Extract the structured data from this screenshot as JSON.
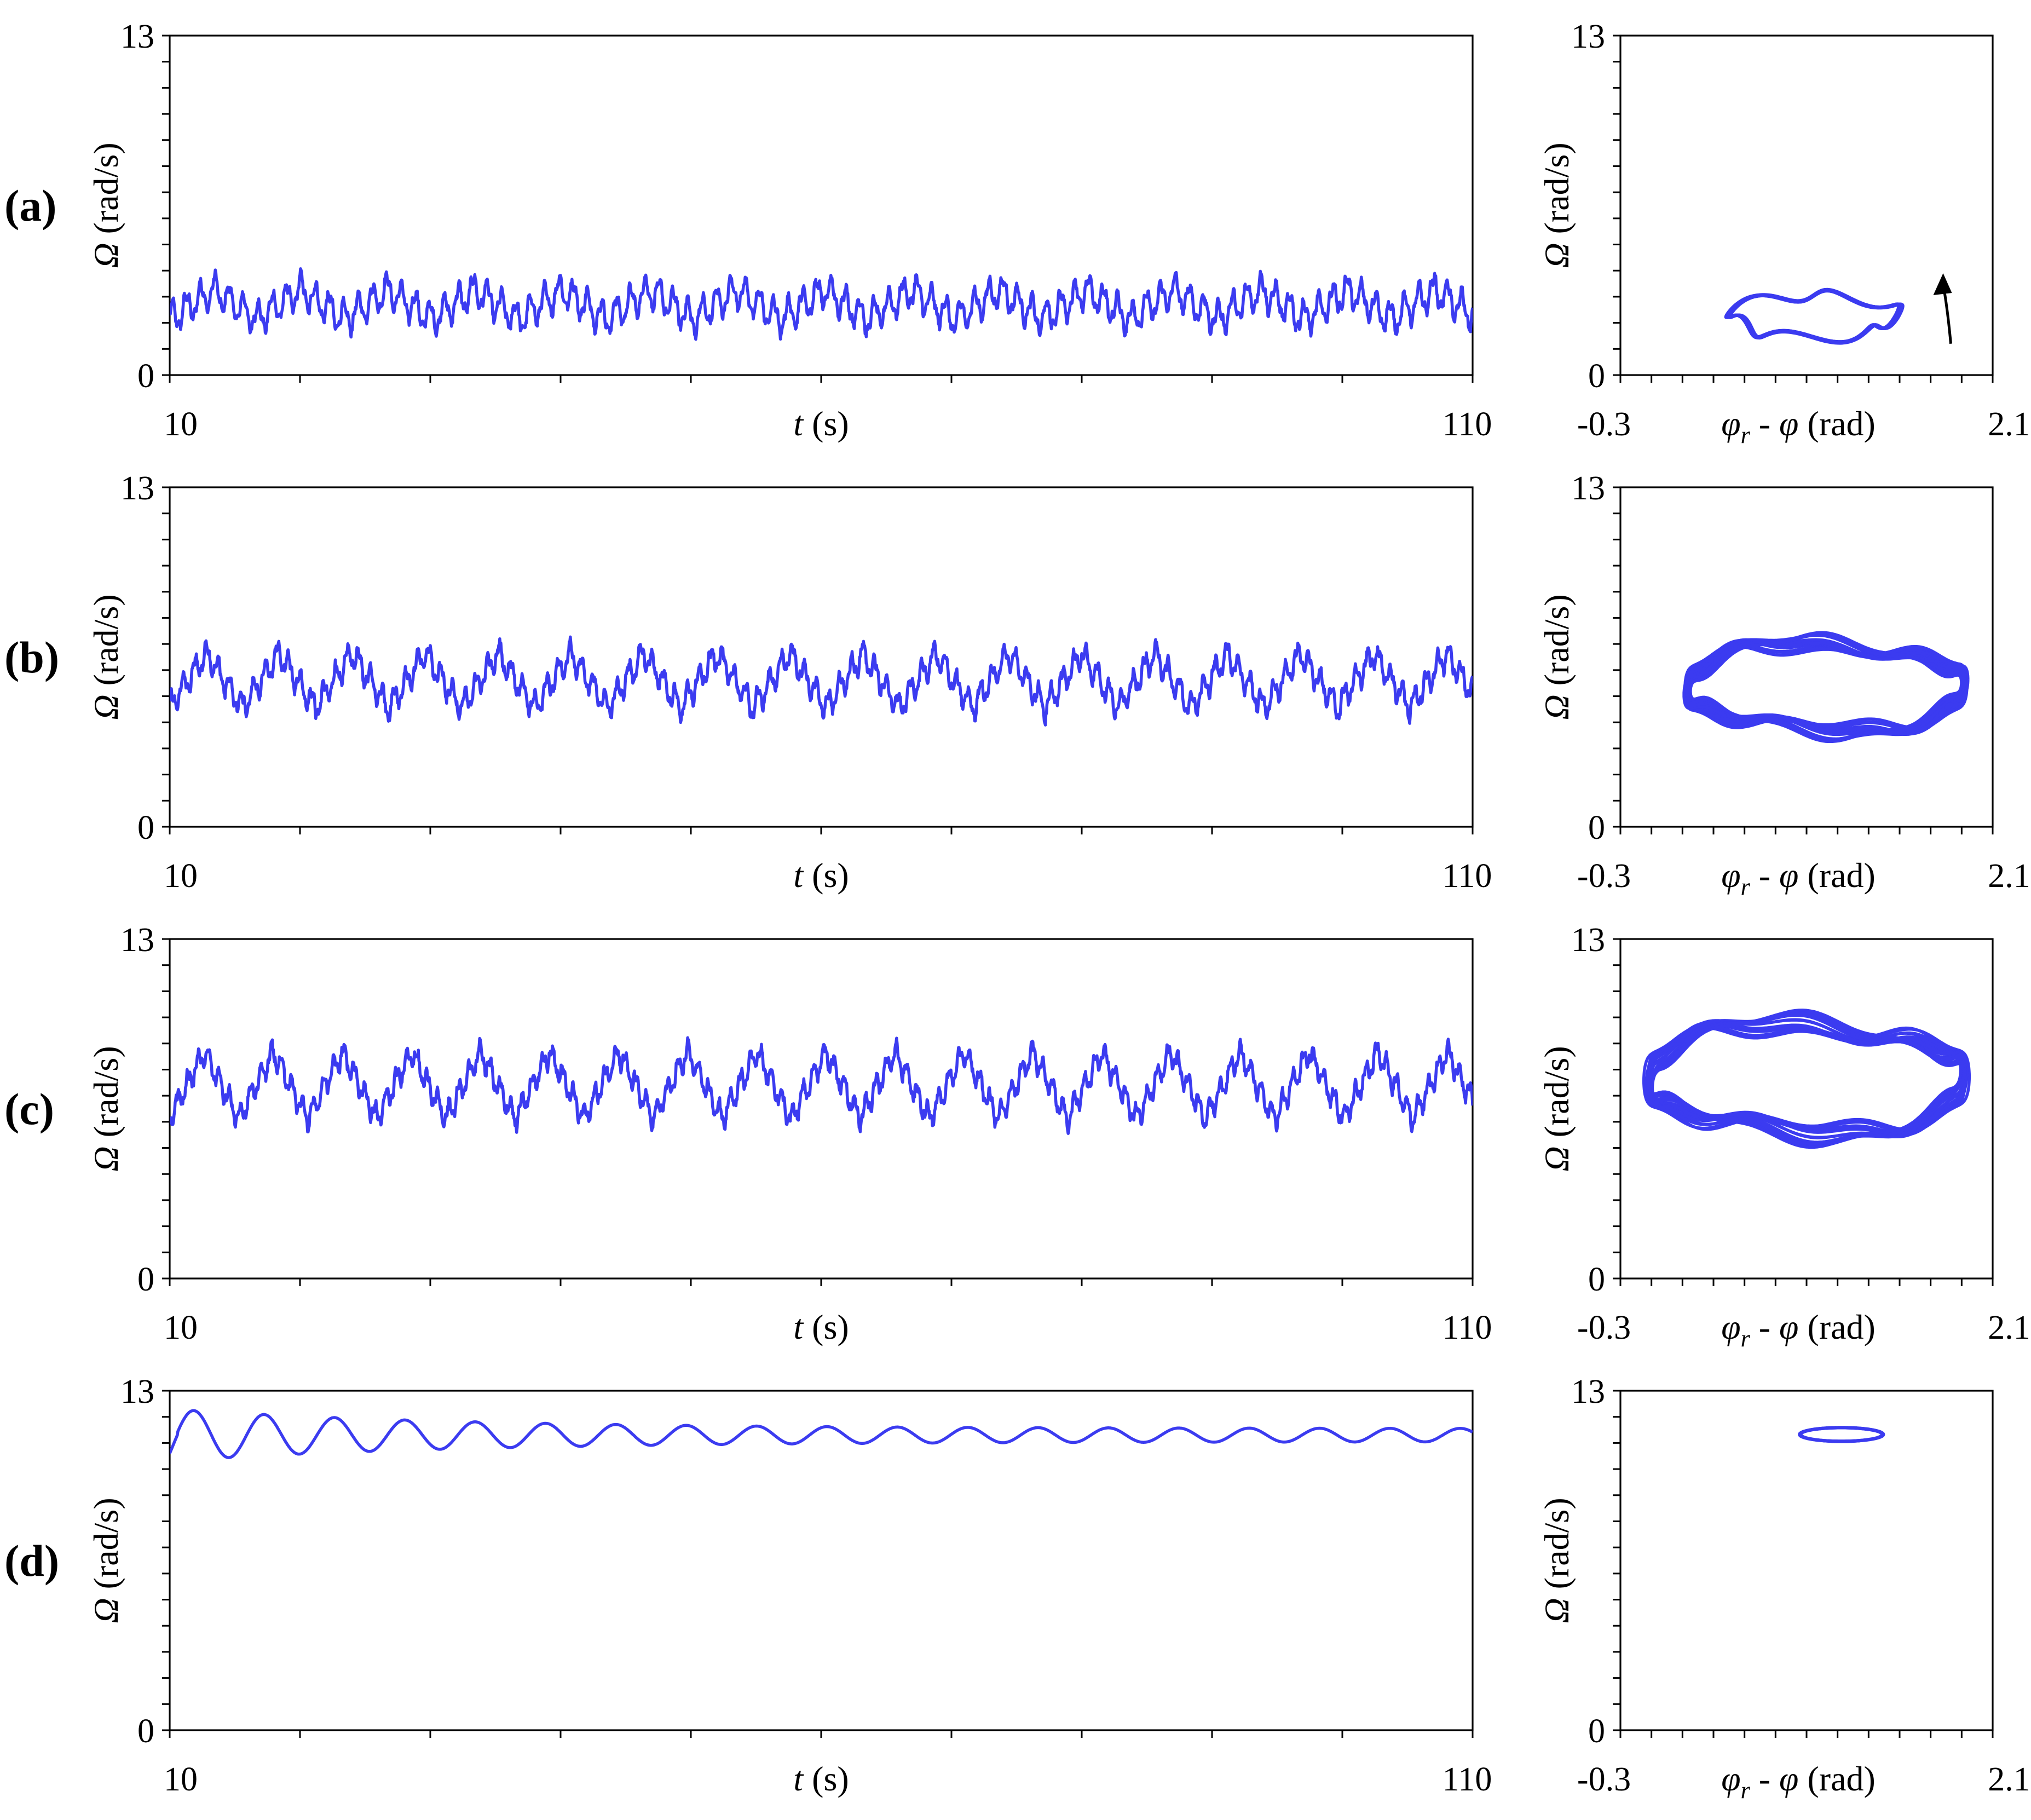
{
  "chart_data": [
    {
      "panel": "(a)",
      "kind": "time",
      "type": "line",
      "title": "",
      "xlabel_var": "t",
      "xlabel_unit": " (s)",
      "ylabel_var": "Ω",
      "ylabel_unit": " (rad/s)",
      "xlim": [
        10,
        110
      ],
      "ylim": [
        0,
        13
      ],
      "x_ticks": [
        "10",
        "110"
      ],
      "y_ticks": [
        "0",
        "13"
      ],
      "series": [
        {
          "name": "Ω(t)",
          "color": "#3b3bf0",
          "mean": 2.7,
          "slow_amplitude": 0.7,
          "slow_period_s": 6.7,
          "fast_amplitude": 0.55,
          "fast_period_s": 1.1
        }
      ]
    },
    {
      "panel": "(a)",
      "kind": "phase",
      "type": "line",
      "xlabel_var": "φ",
      "xlabel_sub": "r",
      "xlabel_unit": " - φ (rad)",
      "ylabel_var": "Ω",
      "ylabel_unit": " (rad/s)",
      "xlim": [
        -0.3,
        2.1
      ],
      "ylim": [
        0,
        13
      ],
      "x_ticks": [
        "-0.3",
        "2.1"
      ],
      "y_ticks": [
        "0",
        "13"
      ],
      "series": [
        {
          "name": "trajectory",
          "color": "#3b3bf0",
          "x_range": [
            0.4,
            1.5
          ],
          "y_range": [
            1.4,
            3.1
          ]
        }
      ],
      "annotation": "arrow indicating direction of motion"
    },
    {
      "panel": "(b)",
      "kind": "time",
      "type": "line",
      "xlabel_var": "t",
      "xlabel_unit": " (s)",
      "ylabel_var": "Ω",
      "ylabel_unit": " (rad/s)",
      "xlim": [
        10,
        110
      ],
      "ylim": [
        0,
        13
      ],
      "x_ticks": [
        "10",
        "110"
      ],
      "y_ticks": [
        "0",
        "13"
      ],
      "series": [
        {
          "name": "Ω(t)",
          "color": "#3b3bf0",
          "mean": 5.6,
          "slow_amplitude": 1.3,
          "slow_period_s": 5.6,
          "fast_amplitude": 0.45,
          "fast_period_s": 0.9
        }
      ]
    },
    {
      "panel": "(b)",
      "kind": "phase",
      "type": "line",
      "xlabel_var": "φ",
      "xlabel_sub": "r",
      "xlabel_unit": " - φ (rad)",
      "ylabel_var": "Ω",
      "ylabel_unit": " (rad/s)",
      "xlim": [
        -0.3,
        2.1
      ],
      "ylim": [
        0,
        13
      ],
      "x_ticks": [
        "-0.3",
        "2.1"
      ],
      "y_ticks": [
        "0",
        "13"
      ],
      "series": [
        {
          "name": "trajectory",
          "color": "#3b3bf0",
          "x_range": [
            0.1,
            1.95
          ],
          "y_range": [
            3.6,
            7.1
          ]
        }
      ]
    },
    {
      "panel": "(c)",
      "kind": "time",
      "type": "line",
      "xlabel_var": "t",
      "xlabel_unit": " (s)",
      "ylabel_var": "Ω",
      "ylabel_unit": " (rad/s)",
      "xlim": [
        10,
        110
      ],
      "ylim": [
        0,
        13
      ],
      "x_ticks": [
        "10",
        "110"
      ],
      "y_ticks": [
        "0",
        "13"
      ],
      "series": [
        {
          "name": "Ω(t)",
          "color": "#3b3bf0",
          "mean": 7.4,
          "slow_amplitude": 1.6,
          "slow_period_s": 5.3,
          "fast_amplitude": 0.4,
          "fast_period_s": 0.8
        }
      ]
    },
    {
      "panel": "(c)",
      "kind": "phase",
      "type": "line",
      "xlabel_var": "φ",
      "xlabel_sub": "r",
      "xlabel_unit": " - φ (rad)",
      "ylabel_var": "Ω",
      "ylabel_unit": " (rad/s)",
      "xlim": [
        -0.3,
        2.1
      ],
      "ylim": [
        0,
        13
      ],
      "x_ticks": [
        "-0.3",
        "2.1"
      ],
      "y_ticks": [
        "0",
        "13"
      ],
      "series": [
        {
          "name": "trajectory",
          "color": "#3b3bf0",
          "x_range": [
            -0.15,
            1.95
          ],
          "y_range": [
            5.5,
            9.8
          ]
        }
      ]
    },
    {
      "panel": "(d)",
      "kind": "time",
      "type": "line",
      "xlabel_var": "t",
      "xlabel_unit": " (s)",
      "ylabel_var": "Ω",
      "ylabel_unit": " (rad/s)",
      "xlim": [
        10,
        110
      ],
      "ylim": [
        0,
        13
      ],
      "x_ticks": [
        "10",
        "110"
      ],
      "y_ticks": [
        "0",
        "13"
      ],
      "series": [
        {
          "name": "Ω(t)",
          "color": "#3b3bf0",
          "mean": 11.3,
          "initial_amplitude": 1.0,
          "final_amplitude": 0.25,
          "period_s": 5.4,
          "start_value": 10.6
        }
      ]
    },
    {
      "panel": "(d)",
      "kind": "phase",
      "type": "line",
      "xlabel_var": "φ",
      "xlabel_sub": "r",
      "xlabel_unit": " - φ (rad)",
      "ylabel_var": "Ω",
      "ylabel_unit": " (rad/s)",
      "xlim": [
        -0.3,
        2.1
      ],
      "ylim": [
        0,
        13
      ],
      "x_ticks": [
        "-0.3",
        "2.1"
      ],
      "y_ticks": [
        "0",
        "13"
      ],
      "series": [
        {
          "name": "trajectory",
          "color": "#3b3bf0",
          "x_range": [
            0.85,
            1.4
          ],
          "y_range": [
            11.05,
            11.6
          ]
        }
      ]
    }
  ]
}
